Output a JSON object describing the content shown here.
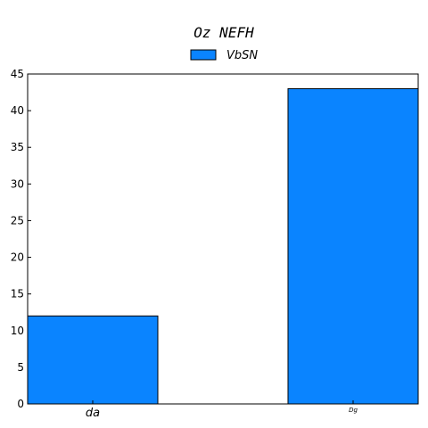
{
  "chart_data": {
    "type": "bar",
    "title": "Oz NEFH",
    "categories": [
      "da",
      "Dg"
    ],
    "series": [
      {
        "name": "VbSN",
        "values": [
          12,
          43
        ],
        "color": "#0a84ff"
      }
    ],
    "ylim": [
      0,
      45
    ],
    "yticks": [
      0,
      5,
      10,
      15,
      20,
      25,
      30,
      35,
      40,
      45
    ],
    "xlabel": "",
    "ylabel": "",
    "grid": false,
    "legend_position": "top-center"
  }
}
